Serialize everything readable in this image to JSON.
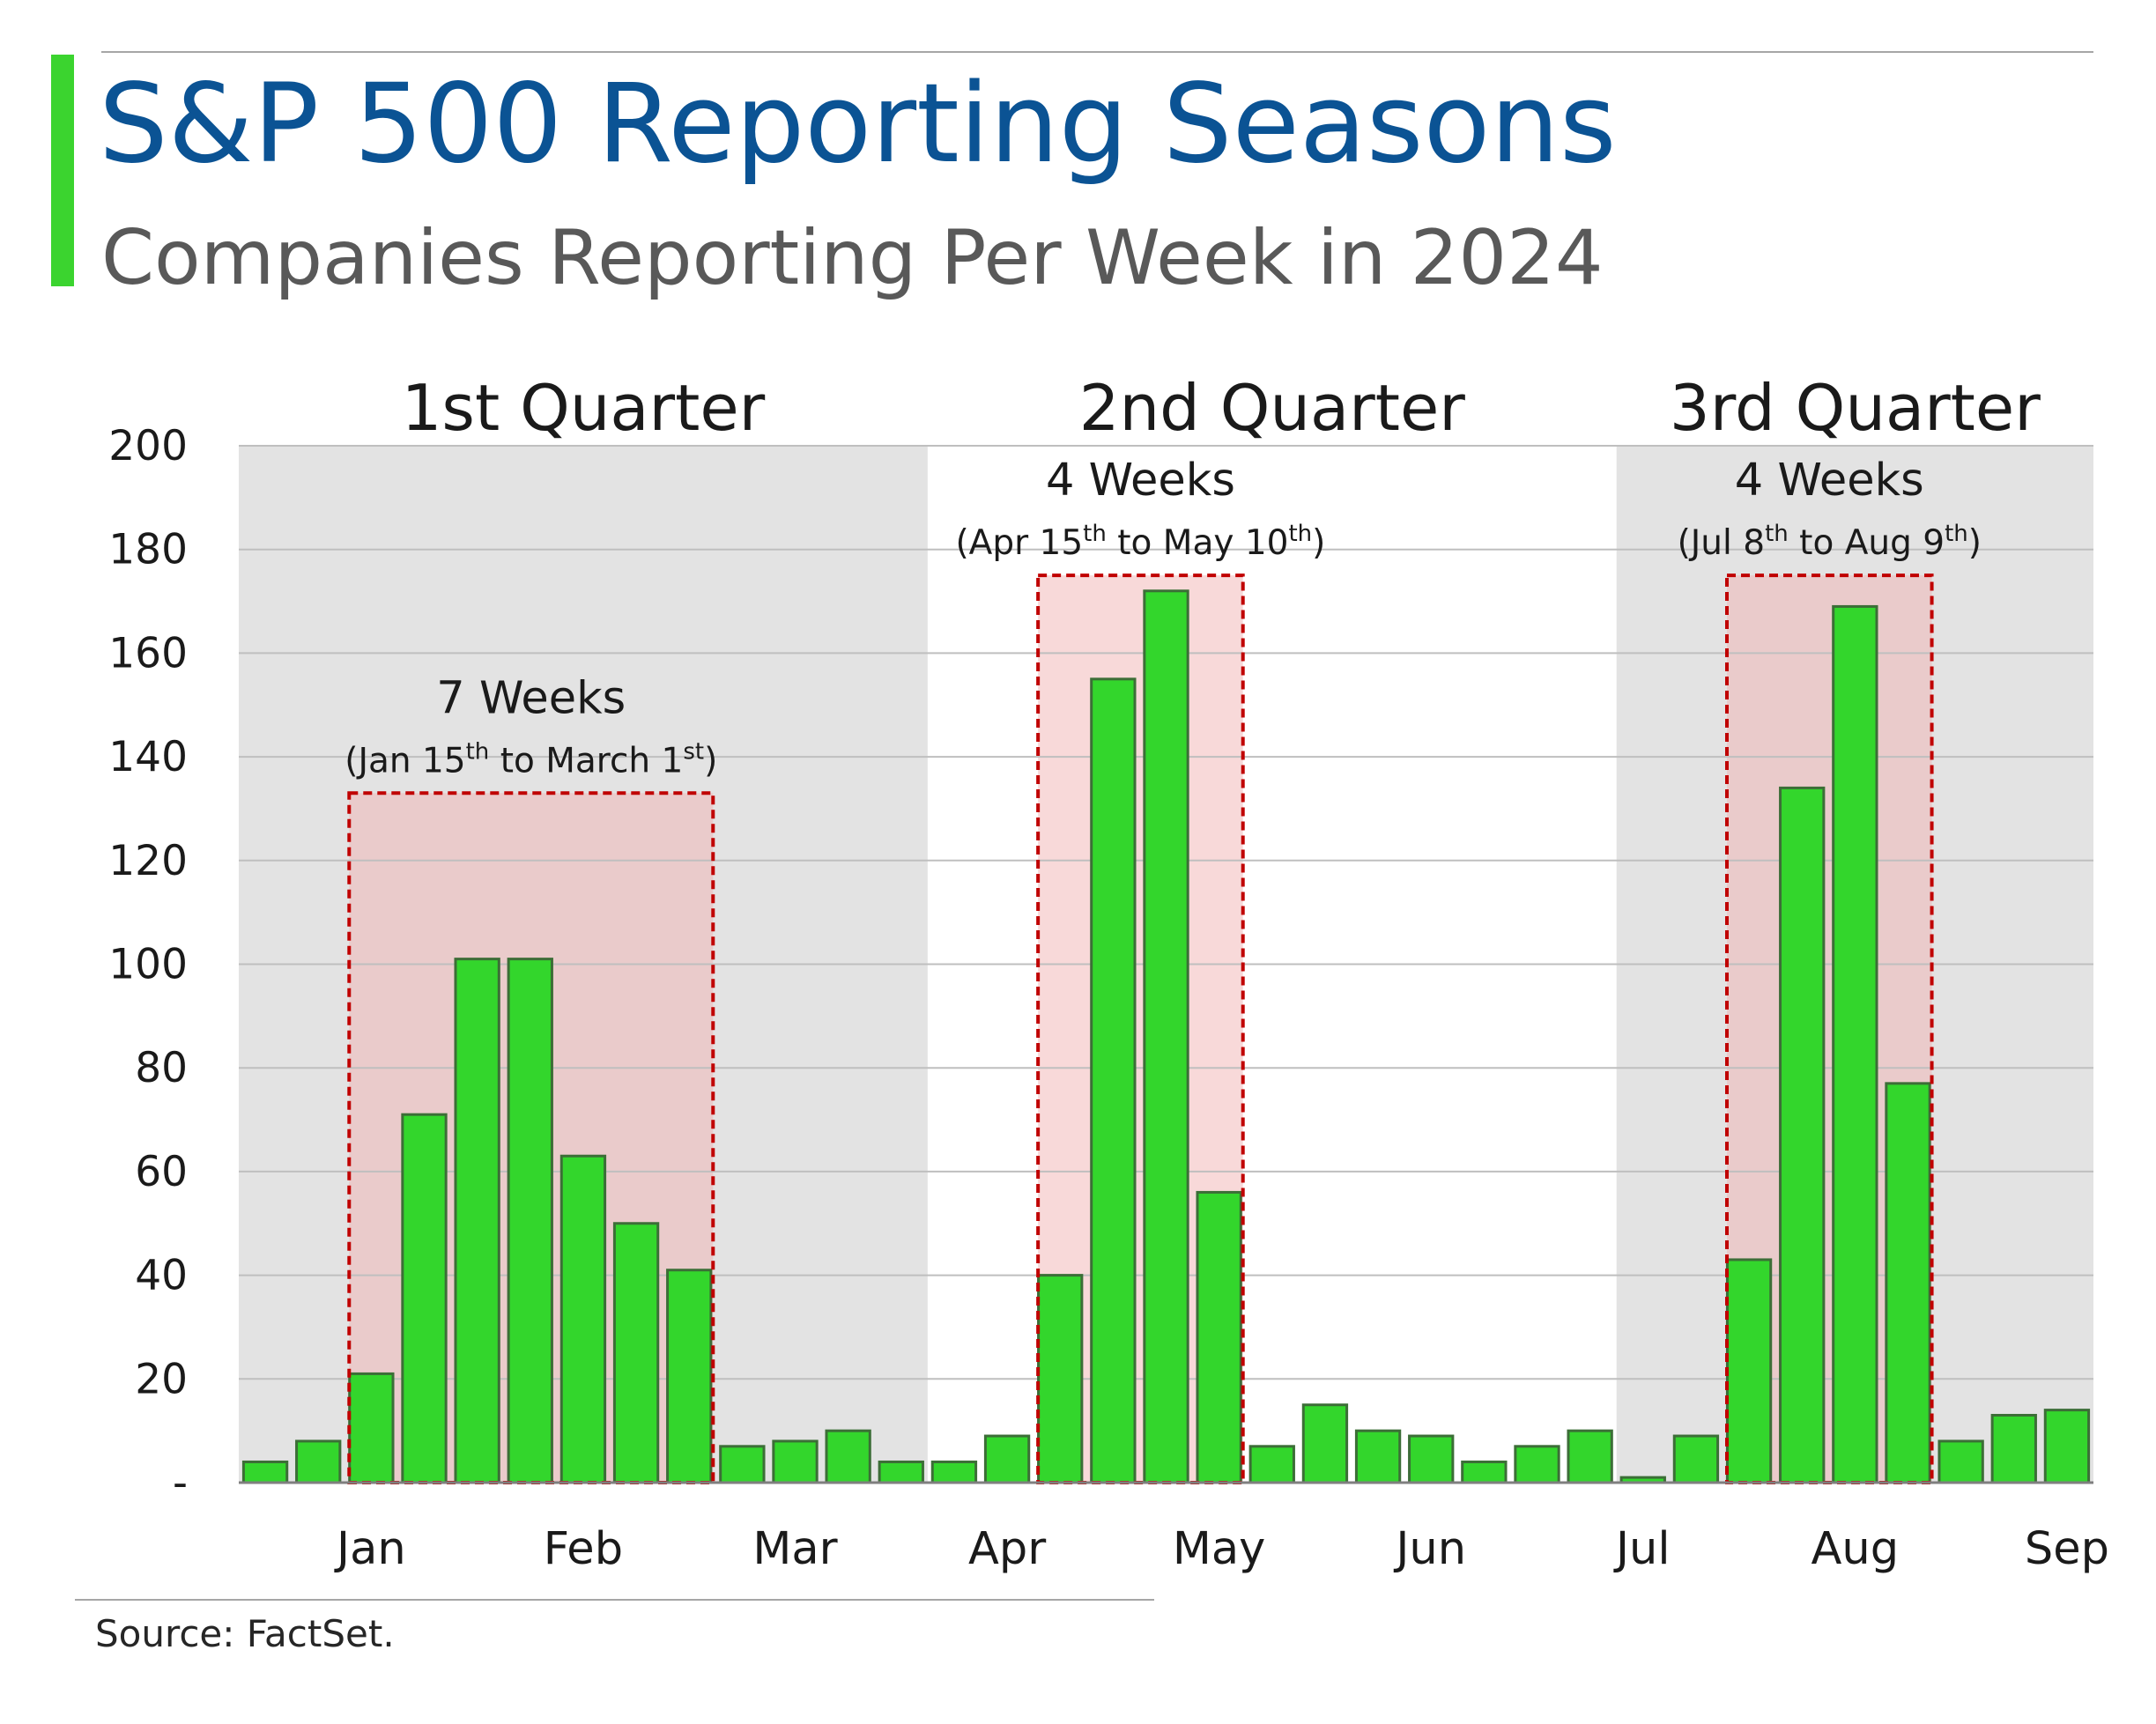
{
  "header": {
    "title": "S&P 500 Reporting Seasons",
    "subtitle": "Companies Reporting Per Week in 2024"
  },
  "footer": {
    "source": "Source: FactSet."
  },
  "colors": {
    "title": "#0b5394",
    "subtitle": "#595959",
    "accent": "#3bd42f",
    "bar_fill": "#33d62c",
    "bar_stroke": "#3c6e37",
    "quarter_shading": "#e3e3e3",
    "highlight_fill": "#f2b3b3",
    "highlight_border": "#c00000"
  },
  "chart_data": {
    "type": "bar",
    "title": "S&P 500 Reporting Seasons",
    "subtitle": "Companies Reporting Per Week in 2024",
    "xlabel": "",
    "ylabel": "",
    "ylim": [
      0,
      200
    ],
    "y_ticks": [
      0,
      20,
      40,
      60,
      80,
      100,
      120,
      140,
      160,
      180,
      200
    ],
    "y_tick_labels": [
      "-",
      "20",
      "40",
      "60",
      "80",
      "100",
      "120",
      "140",
      "160",
      "180",
      "200"
    ],
    "grid": true,
    "values": [
      4,
      8,
      21,
      71,
      101,
      101,
      63,
      50,
      41,
      7,
      8,
      10,
      4,
      4,
      9,
      40,
      155,
      172,
      56,
      7,
      15,
      10,
      9,
      4,
      7,
      10,
      1,
      9,
      43,
      134,
      169,
      77,
      8,
      13,
      14
    ],
    "month_labels": [
      {
        "label": "Jan",
        "bar_index": 2.5
      },
      {
        "label": "Feb",
        "bar_index": 6.5
      },
      {
        "label": "Mar",
        "bar_index": 10.5
      },
      {
        "label": "Apr",
        "bar_index": 14.5
      },
      {
        "label": "May",
        "bar_index": 18.5
      },
      {
        "label": "Jun",
        "bar_index": 22.5
      },
      {
        "label": "Jul",
        "bar_index": 26.5
      },
      {
        "label": "Aug",
        "bar_index": 30.5
      },
      {
        "label": "Sep",
        "bar_index": 34.5
      }
    ],
    "quarters": [
      {
        "label": "1st Quarter",
        "start_bar": 0,
        "end_bar": 12,
        "shaded": true
      },
      {
        "label": "2nd Quarter",
        "start_bar": 13,
        "end_bar": 25,
        "shaded": false
      },
      {
        "label": "3rd Quarter",
        "start_bar": 26,
        "end_bar": 34,
        "shaded": true
      }
    ],
    "highlights": [
      {
        "weeks": "7 Weeks",
        "range": [
          "(Jan 15",
          "th",
          " to March 1",
          "st",
          ")"
        ],
        "start_bar": 2,
        "end_bar": 8,
        "top_value": 133
      },
      {
        "weeks": "4 Weeks",
        "range": [
          "(Apr 15",
          "th",
          " to May 10",
          "th",
          ")"
        ],
        "start_bar": 15,
        "end_bar": 18,
        "top_value": 175
      },
      {
        "weeks": "4 Weeks",
        "range": [
          "(Jul 8",
          "th",
          " to Aug 9",
          "th",
          ")"
        ],
        "start_bar": 28,
        "end_bar": 31,
        "top_value": 175
      }
    ]
  }
}
